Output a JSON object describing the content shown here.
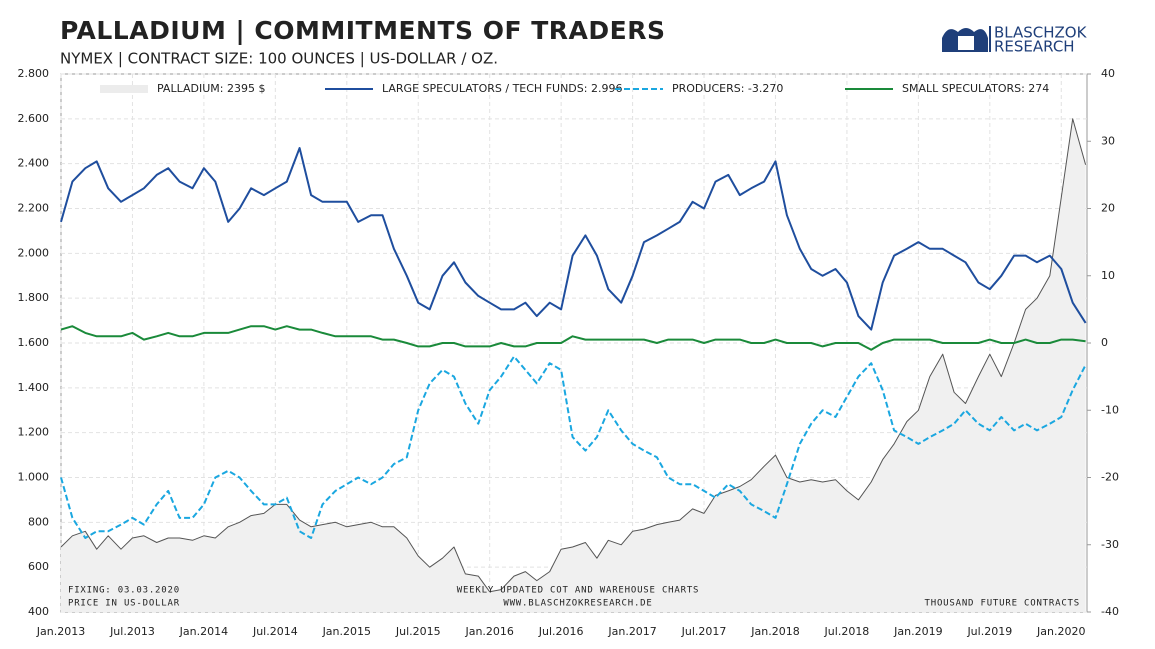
{
  "chart_data": {
    "type": "line",
    "title": "PALLADIUM | COMMITMENTS OF TRADERS",
    "subtitle": "NYMEX | CONTRACT SIZE: 100 OUNCES | US-DOLLAR / OZ.",
    "logo": [
      "BLASCHZOK",
      "RESEARCH"
    ],
    "annotations": [
      "FIXING: 03.03.2020",
      "PRICE IN US-DOLLAR",
      "WEEKLY UPDATED COT AND WAREHOUSE CHARTS",
      "WWW.BLASCHZOKRESEARCH.DE",
      "THOUSAND FUTURE CONTRACTS"
    ],
    "grid": true,
    "x": [
      2013,
      2013.08,
      2013.17,
      2013.25,
      2013.33,
      2013.42,
      2013.5,
      2013.58,
      2013.67,
      2013.75,
      2013.83,
      2013.92,
      2014,
      2014.08,
      2014.17,
      2014.25,
      2014.33,
      2014.42,
      2014.5,
      2014.58,
      2014.67,
      2014.75,
      2014.83,
      2014.92,
      2015,
      2015.08,
      2015.17,
      2015.25,
      2015.33,
      2015.42,
      2015.5,
      2015.58,
      2015.67,
      2015.75,
      2015.83,
      2015.92,
      2016,
      2016.08,
      2016.17,
      2016.25,
      2016.33,
      2016.42,
      2016.5,
      2016.58,
      2016.67,
      2016.75,
      2016.83,
      2016.92,
      2017,
      2017.08,
      2017.17,
      2017.25,
      2017.33,
      2017.42,
      2017.5,
      2017.58,
      2017.67,
      2017.75,
      2017.83,
      2017.92,
      2018,
      2018.08,
      2018.17,
      2018.25,
      2018.33,
      2018.42,
      2018.5,
      2018.58,
      2018.67,
      2018.75,
      2018.83,
      2018.92,
      2019,
      2019.08,
      2019.17,
      2019.25,
      2019.33,
      2019.42,
      2019.5,
      2019.58,
      2019.67,
      2019.75,
      2019.83,
      2019.92,
      2020,
      2020.08,
      2020.17
    ],
    "xlim": [
      2013,
      2020.18
    ],
    "xticks": [
      {
        "value": 2013,
        "label": "Jan.2013"
      },
      {
        "value": 2013.5,
        "label": "Jul.2013"
      },
      {
        "value": 2014,
        "label": "Jan.2014"
      },
      {
        "value": 2014.5,
        "label": "Jul.2014"
      },
      {
        "value": 2015,
        "label": "Jan.2015"
      },
      {
        "value": 2015.5,
        "label": "Jul.2015"
      },
      {
        "value": 2016,
        "label": "Jan.2016"
      },
      {
        "value": 2016.5,
        "label": "Jul.2016"
      },
      {
        "value": 2017,
        "label": "Jan.2017"
      },
      {
        "value": 2017.5,
        "label": "Jul.2017"
      },
      {
        "value": 2018,
        "label": "Jan.2018"
      },
      {
        "value": 2018.5,
        "label": "Jul.2018"
      },
      {
        "value": 2019,
        "label": "Jan.2019"
      },
      {
        "value": 2019.5,
        "label": "Jul.2019"
      },
      {
        "value": 2020,
        "label": "Jan.2020"
      }
    ],
    "ylim": [
      400,
      2800
    ],
    "yticks": [
      400,
      600,
      800,
      {
        "value": 1000,
        "label": "1.000"
      },
      {
        "value": 1200,
        "label": "1.200"
      },
      {
        "value": 1400,
        "label": "1.400"
      },
      {
        "value": 1600,
        "label": "1.600"
      },
      {
        "value": 1800,
        "label": "1.800"
      },
      {
        "value": 2000,
        "label": "2.000"
      },
      {
        "value": 2200,
        "label": "2.200"
      },
      {
        "value": 2400,
        "label": "2.400"
      },
      {
        "value": 2600,
        "label": "2.600"
      },
      {
        "value": 2800,
        "label": "2.800"
      }
    ],
    "y2lim": [
      -40,
      40
    ],
    "y2ticks": [
      -40,
      -30,
      -20,
      -10,
      0,
      10,
      20,
      30,
      40
    ],
    "series": [
      {
        "name": "PALLADIUM: 2395 $",
        "color": "#555555",
        "fill": "#f0f0f0",
        "values": [
          690,
          740,
          760,
          680,
          740,
          680,
          730,
          740,
          710,
          730,
          730,
          720,
          740,
          730,
          780,
          800,
          830,
          840,
          880,
          880,
          810,
          780,
          790,
          800,
          780,
          790,
          800,
          780,
          780,
          730,
          650,
          600,
          640,
          690,
          570,
          560,
          490,
          500,
          560,
          580,
          540,
          580,
          680,
          690,
          710,
          640,
          720,
          700,
          760,
          770,
          790,
          800,
          810,
          860,
          840,
          920,
          940,
          960,
          990,
          1050,
          1100,
          1000,
          980,
          990,
          980,
          990,
          940,
          900,
          980,
          1080,
          1150,
          1250,
          1300,
          1450,
          1550,
          1380,
          1330,
          1450,
          1550,
          1450,
          1600,
          1750,
          1800,
          1900,
          2250,
          2600,
          2395
        ]
      },
      {
        "name": "LARGE SPECULATORS / TECH FUNDS: 2.996",
        "color": "#1f4e9e",
        "axis": "y2",
        "values": [
          18,
          24,
          26,
          27,
          23,
          21,
          22,
          23,
          25,
          26,
          24,
          23,
          26,
          24,
          18,
          20,
          23,
          22,
          23,
          24,
          29,
          22,
          21,
          21,
          21,
          18,
          19,
          19,
          14,
          10,
          6,
          5,
          10,
          12,
          9,
          7,
          6,
          5,
          5,
          6,
          4,
          6,
          5,
          13,
          16,
          13,
          8,
          6,
          10,
          15,
          16,
          17,
          18,
          21,
          20,
          24,
          25,
          22,
          23,
          24,
          27,
          19,
          14,
          11,
          10,
          11,
          9,
          4,
          2,
          9,
          13,
          14,
          15,
          14,
          14,
          13,
          12,
          9,
          8,
          10,
          13,
          13,
          12,
          13,
          11,
          6,
          2.996
        ]
      },
      {
        "name": "PRODUCERS: -3.270",
        "color": "#1aa7e0",
        "axis": "y2",
        "dashed": true,
        "values": [
          -20,
          -26,
          -29,
          -28,
          -28,
          -27,
          -26,
          -27,
          -24,
          -22,
          -26,
          -26,
          -24,
          -20,
          -19,
          -20,
          -22,
          -24,
          -24,
          -23,
          -28,
          -29,
          -24,
          -22,
          -21,
          -20,
          -21,
          -20,
          -18,
          -17,
          -10,
          -6,
          -4,
          -5,
          -9,
          -12,
          -7,
          -5,
          -2,
          -4,
          -6,
          -3,
          -4,
          -14,
          -16,
          -14,
          -10,
          -13,
          -15,
          -16,
          -17,
          -20,
          -21,
          -21,
          -22,
          -23,
          -21,
          -22,
          -24,
          -25,
          -26,
          -21,
          -15,
          -12,
          -10,
          -11,
          -8,
          -5,
          -3,
          -7,
          -13,
          -14,
          -15,
          -14,
          -13,
          -12,
          -10,
          -12,
          -13,
          -11,
          -13,
          -12,
          -13,
          -12,
          -11,
          -7,
          -3.27
        ]
      },
      {
        "name": "SMALL SPECULATORS: 274",
        "color": "#1a8a3a",
        "axis": "y2",
        "values": [
          2,
          2.5,
          1.5,
          1,
          1,
          1,
          1.5,
          0.5,
          1,
          1.5,
          1,
          1,
          1.5,
          1.5,
          1.5,
          2,
          2.5,
          2.5,
          2,
          2.5,
          2,
          2,
          1.5,
          1,
          1,
          1,
          1,
          0.5,
          0.5,
          0,
          -0.5,
          -0.5,
          0,
          0,
          -0.5,
          -0.5,
          -0.5,
          0,
          -0.5,
          -0.5,
          0,
          0,
          0,
          1,
          0.5,
          0.5,
          0.5,
          0.5,
          0.5,
          0.5,
          0,
          0.5,
          0.5,
          0.5,
          0,
          0.5,
          0.5,
          0.5,
          0,
          0,
          0.5,
          0,
          0,
          0,
          -0.5,
          0,
          0,
          0,
          -1,
          0,
          0.5,
          0.5,
          0.5,
          0.5,
          0,
          0,
          0,
          0,
          0.5,
          0,
          0,
          0.5,
          0,
          0,
          0.5,
          0.5,
          0.274
        ]
      }
    ]
  }
}
